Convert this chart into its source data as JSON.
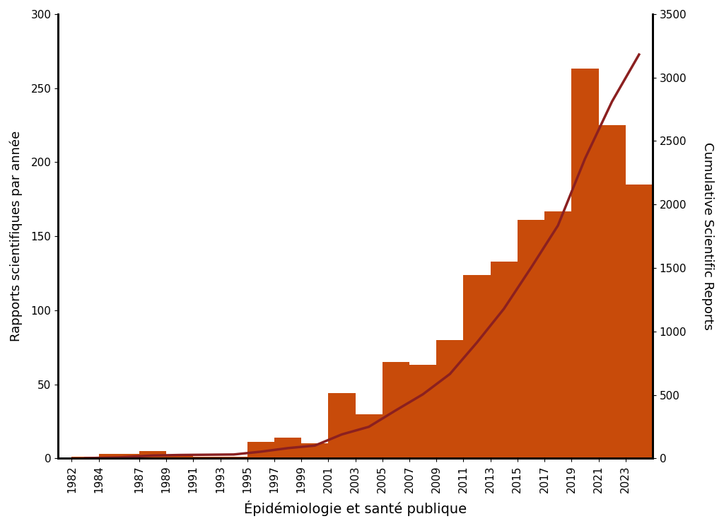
{
  "years": [
    1982,
    1984,
    1987,
    1989,
    1991,
    1993,
    1995,
    1997,
    1999,
    2001,
    2003,
    2005,
    2007,
    2009,
    2011,
    2013,
    2015,
    2017,
    2019,
    2021,
    2023
  ],
  "annual_values": [
    1,
    3,
    5,
    2,
    1,
    1,
    11,
    14,
    10,
    44,
    30,
    65,
    63,
    80,
    124,
    133,
    161,
    167,
    263,
    225,
    185
  ],
  "cumulative_values": [
    2,
    8,
    23,
    27,
    29,
    31,
    53,
    81,
    101,
    189,
    249,
    379,
    505,
    665,
    913,
    1179,
    1501,
    1835,
    2361,
    2811,
    3181
  ],
  "xtick_labels": [
    "1982",
    "1984",
    "1987",
    "1989",
    "1991",
    "1993",
    "1995",
    "1997",
    "1999",
    "2001",
    "2003",
    "2005",
    "2007",
    "2009",
    "2011",
    "2013",
    "2015",
    "2017",
    "2019",
    "2021",
    "2023"
  ],
  "ylim_left": [
    0,
    300
  ],
  "ylim_right": [
    0,
    3500
  ],
  "yticks_left": [
    0,
    50,
    100,
    150,
    200,
    250,
    300
  ],
  "yticks_right": [
    0,
    500,
    1000,
    1500,
    2000,
    2500,
    3000,
    3500
  ],
  "ylabel_left": "Rapports scientifiques par année",
  "ylabel_right": "Cumulative Scientific Reports",
  "xlabel": "Épidémiologie et santé publique",
  "bar_color": "#C84B0A",
  "line_color": "#8B2020",
  "background_color": "#FFFFFF",
  "line_width": 2.5,
  "xlabel_fontsize": 14,
  "ylabel_fontsize": 13,
  "tick_fontsize": 11,
  "xlim": [
    1981,
    2025
  ],
  "figure_width": 10.24,
  "figure_height": 7.44,
  "dpi": 100
}
